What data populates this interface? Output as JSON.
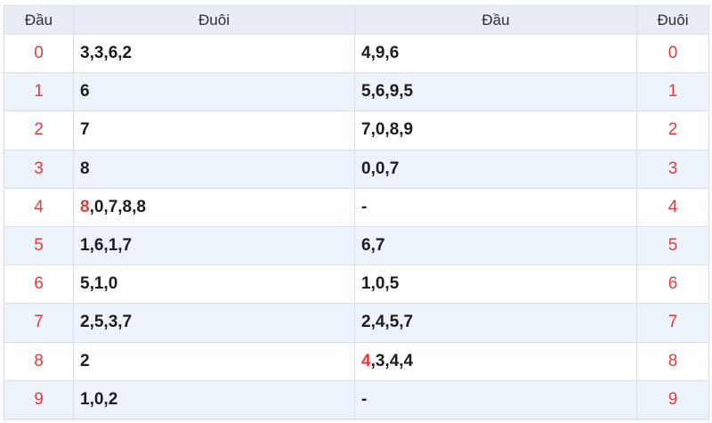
{
  "colors": {
    "header-bg": "#e7ecf5",
    "stripe-bg": "#edf3fb",
    "border": "#d9dfe8",
    "red": "#e23b3b",
    "text-dark": "#1c1c1e",
    "header-text": "#2d2d30"
  },
  "table": {
    "headers": [
      {
        "label": "Đầu"
      },
      {
        "label": "Đuôi"
      },
      {
        "label": "Đầu"
      },
      {
        "label": "Đuôi"
      }
    ],
    "rows": [
      {
        "digit": "0",
        "left_red": "",
        "left": "3,3,6,2",
        "right_red": "",
        "right": "4,9,6"
      },
      {
        "digit": "1",
        "left_red": "",
        "left": "6",
        "right_red": "",
        "right": "5,6,9,5"
      },
      {
        "digit": "2",
        "left_red": "",
        "left": "7",
        "right_red": "",
        "right": "7,0,8,9"
      },
      {
        "digit": "3",
        "left_red": "",
        "left": "8",
        "right_red": "",
        "right": "0,0,7"
      },
      {
        "digit": "4",
        "left_red": "8",
        "left": ",0,7,8,8",
        "right_red": "",
        "right": "-"
      },
      {
        "digit": "5",
        "left_red": "",
        "left": "1,6,1,7",
        "right_red": "",
        "right": "6,7"
      },
      {
        "digit": "6",
        "left_red": "",
        "left": "5,1,0",
        "right_red": "",
        "right": "1,0,5"
      },
      {
        "digit": "7",
        "left_red": "",
        "left": "2,5,3,7",
        "right_red": "",
        "right": "2,4,5,7"
      },
      {
        "digit": "8",
        "left_red": "",
        "left": "2",
        "right_red": "4",
        "right": ",3,4,4"
      },
      {
        "digit": "9",
        "left_red": "",
        "left": "1,0,2",
        "right_red": "",
        "right": "-"
      }
    ]
  }
}
